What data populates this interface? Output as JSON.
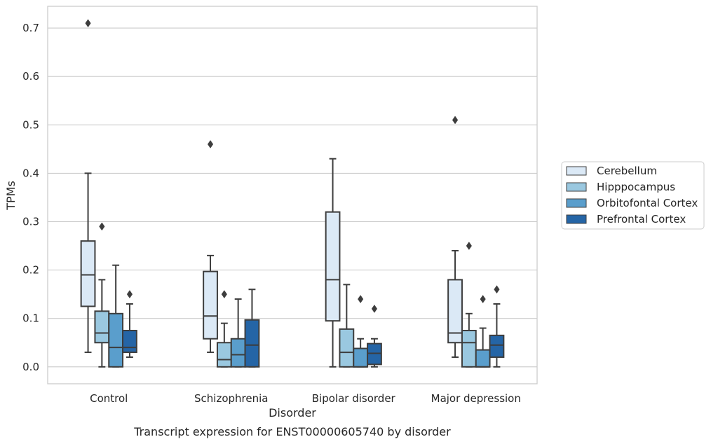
{
  "chart_data": {
    "type": "boxplot",
    "title": "",
    "caption": "Transcript expression for ENST00000605740 by disorder",
    "xlabel": "Disorder",
    "ylabel": "TPMs",
    "ylim": [
      -0.035,
      0.745
    ],
    "yticks": [
      0.0,
      0.1,
      0.2,
      0.3,
      0.4,
      0.5,
      0.6,
      0.7
    ],
    "ytick_labels": [
      "0.0",
      "0.1",
      "0.2",
      "0.3",
      "0.4",
      "0.5",
      "0.6",
      "0.7"
    ],
    "grid": "horizontal",
    "legend_position": "right",
    "categories": [
      "Control",
      "Schizophrenia",
      "Bipolar disorder",
      "Major depression"
    ],
    "series": [
      {
        "name": "Cerebellum",
        "color": "#dbe9f6",
        "boxes": [
          {
            "whisker_low": 0.03,
            "q1": 0.125,
            "median": 0.19,
            "q3": 0.26,
            "whisker_high": 0.4,
            "outliers": [
              0.71
            ]
          },
          {
            "whisker_low": 0.03,
            "q1": 0.058,
            "median": 0.105,
            "q3": 0.197,
            "whisker_high": 0.23,
            "outliers": [
              0.46
            ]
          },
          {
            "whisker_low": 0.0,
            "q1": 0.095,
            "median": 0.18,
            "q3": 0.32,
            "whisker_high": 0.43,
            "outliers": []
          },
          {
            "whisker_low": 0.02,
            "q1": 0.05,
            "median": 0.07,
            "q3": 0.18,
            "whisker_high": 0.24,
            "outliers": [
              0.51
            ]
          }
        ]
      },
      {
        "name": "Hipppocampus",
        "color": "#9ac8e0",
        "boxes": [
          {
            "whisker_low": 0.0,
            "q1": 0.05,
            "median": 0.07,
            "q3": 0.115,
            "whisker_high": 0.18,
            "outliers": [
              0.29
            ]
          },
          {
            "whisker_low": 0.0,
            "q1": 0.0,
            "median": 0.015,
            "q3": 0.05,
            "whisker_high": 0.09,
            "outliers": [
              0.15
            ]
          },
          {
            "whisker_low": 0.0,
            "q1": 0.0,
            "median": 0.03,
            "q3": 0.078,
            "whisker_high": 0.17,
            "outliers": []
          },
          {
            "whisker_low": 0.0,
            "q1": 0.0,
            "median": 0.05,
            "q3": 0.075,
            "whisker_high": 0.11,
            "outliers": [
              0.25
            ]
          }
        ]
      },
      {
        "name": "Orbitofontal Cortex",
        "color": "#5a9ecc",
        "boxes": [
          {
            "whisker_low": 0.0,
            "q1": 0.0,
            "median": 0.04,
            "q3": 0.11,
            "whisker_high": 0.21,
            "outliers": []
          },
          {
            "whisker_low": 0.0,
            "q1": 0.0,
            "median": 0.025,
            "q3": 0.058,
            "whisker_high": 0.14,
            "outliers": []
          },
          {
            "whisker_low": 0.0,
            "q1": 0.0,
            "median": 0.0,
            "q3": 0.038,
            "whisker_high": 0.058,
            "outliers": [
              0.14
            ]
          },
          {
            "whisker_low": 0.0,
            "q1": 0.0,
            "median": 0.0,
            "q3": 0.035,
            "whisker_high": 0.08,
            "outliers": [
              0.14
            ]
          }
        ]
      },
      {
        "name": "Prefrontal Cortex",
        "color": "#2565a6",
        "boxes": [
          {
            "whisker_low": 0.02,
            "q1": 0.03,
            "median": 0.04,
            "q3": 0.075,
            "whisker_high": 0.13,
            "outliers": [
              0.15
            ]
          },
          {
            "whisker_low": 0.0,
            "q1": 0.0,
            "median": 0.045,
            "q3": 0.097,
            "whisker_high": 0.16,
            "outliers": []
          },
          {
            "whisker_low": 0.0,
            "q1": 0.005,
            "median": 0.028,
            "q3": 0.048,
            "whisker_high": 0.058,
            "outliers": [
              0.12
            ]
          },
          {
            "whisker_low": 0.0,
            "q1": 0.02,
            "median": 0.045,
            "q3": 0.065,
            "whisker_high": 0.13,
            "outliers": [
              0.16
            ]
          }
        ]
      }
    ]
  }
}
